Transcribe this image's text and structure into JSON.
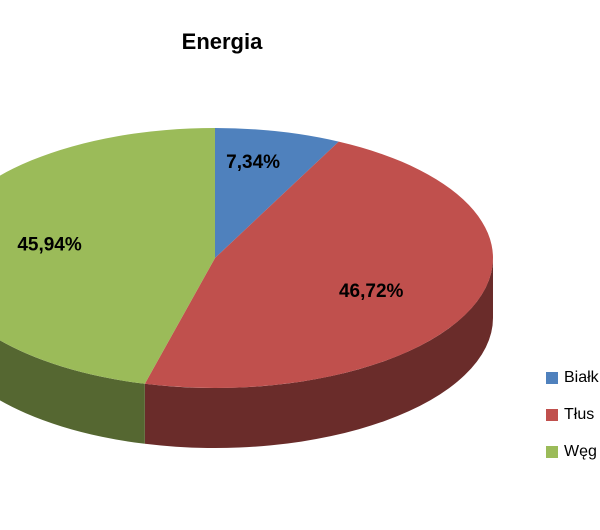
{
  "chart_data": {
    "type": "pie3d",
    "title": "Energia",
    "categories": [
      "Białk",
      "Tłus",
      "Węg"
    ],
    "values": [
      7.34,
      46.72,
      45.94
    ],
    "value_labels": [
      "7,34%",
      "46,72%",
      "45,94%"
    ],
    "colors": [
      "#4f81bd",
      "#c0504d",
      "#9bbb59"
    ],
    "legend": "right"
  }
}
